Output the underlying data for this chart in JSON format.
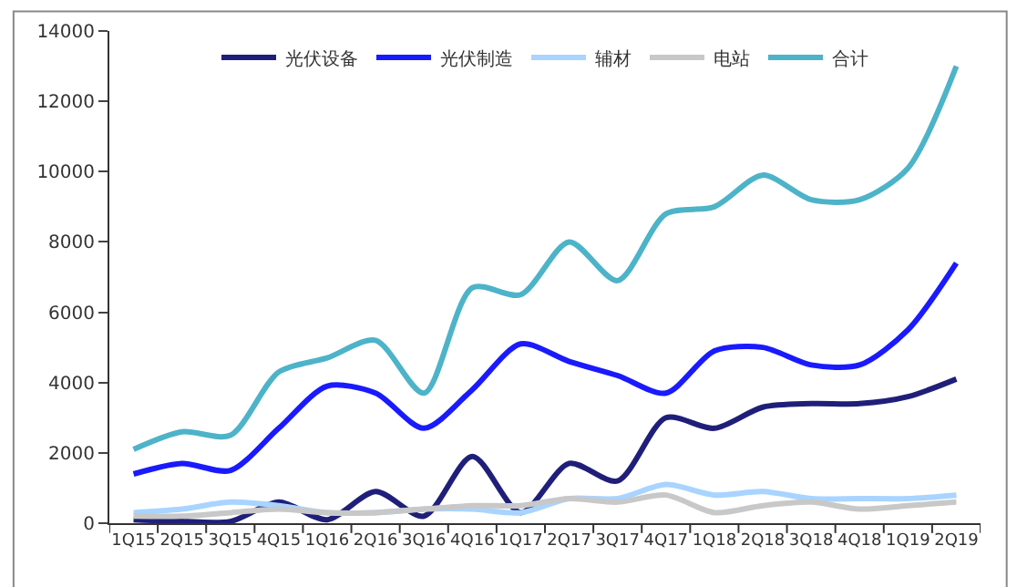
{
  "chart_data": {
    "type": "line",
    "categories": [
      "1Q15",
      "2Q15",
      "3Q15",
      "4Q15",
      "1Q16",
      "2Q16",
      "3Q16",
      "4Q16",
      "1Q17",
      "2Q17",
      "3Q17",
      "4Q17",
      "1Q18",
      "2Q18",
      "3Q18",
      "4Q18",
      "1Q19",
      "2Q19"
    ],
    "series": [
      {
        "name": "光伏设备",
        "color": "#1f1f7a",
        "values": [
          100,
          50,
          50,
          600,
          100,
          900,
          200,
          1900,
          300,
          1700,
          1200,
          3000,
          2700,
          3300,
          3400,
          3400,
          3600,
          4100
        ]
      },
      {
        "name": "光伏制造",
        "color": "#1a1aff",
        "values": [
          1400,
          1700,
          1500,
          2700,
          3900,
          3700,
          2700,
          3800,
          5100,
          4600,
          4200,
          3700,
          4900,
          5000,
          4500,
          4500,
          5500,
          7400
        ]
      },
      {
        "name": "辅材",
        "color": "#a8d4ff",
        "values": [
          300,
          400,
          600,
          500,
          300,
          300,
          400,
          400,
          300,
          700,
          700,
          1100,
          800,
          900,
          700,
          700,
          700,
          800
        ]
      },
      {
        "name": "电站",
        "color": "#c8c8c8",
        "values": [
          200,
          200,
          300,
          400,
          300,
          300,
          400,
          500,
          500,
          700,
          600,
          800,
          300,
          500,
          600,
          400,
          500,
          600
        ]
      },
      {
        "name": "合计",
        "color": "#4db3c8",
        "values": [
          2100,
          2600,
          2500,
          4300,
          4700,
          5200,
          3700,
          6700,
          6500,
          8000,
          6900,
          8800,
          9000,
          9900,
          9200,
          9200,
          10100,
          13000
        ]
      }
    ],
    "ylim": [
      0,
      14000
    ],
    "yticks": [
      0,
      2000,
      4000,
      6000,
      8000,
      10000,
      12000,
      14000
    ],
    "legend": "top",
    "marker": "none",
    "line_style": "solid"
  }
}
